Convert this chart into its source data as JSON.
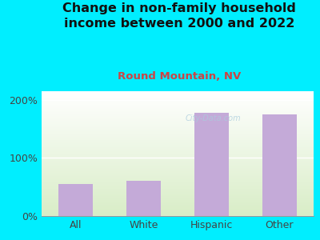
{
  "title": "Change in non-family household\nincome between 2000 and 2022",
  "subtitle": "Round Mountain, NV",
  "categories": [
    "All",
    "White",
    "Hispanic",
    "Other"
  ],
  "values": [
    55,
    60,
    178,
    175
  ],
  "bar_color": "#c4aad8",
  "title_fontsize": 11.5,
  "subtitle_fontsize": 9.5,
  "subtitle_color": "#cc4444",
  "title_color": "#111111",
  "background_outer": "#00eeff",
  "plot_bg_left": "#d8ecc8",
  "plot_bg_right": "#ffffff",
  "ylim": [
    0,
    215
  ],
  "yticks": [
    0,
    100,
    200
  ],
  "ytick_labels": [
    "0%",
    "100%",
    "200%"
  ],
  "tick_fontsize": 9,
  "xtick_fontsize": 9
}
